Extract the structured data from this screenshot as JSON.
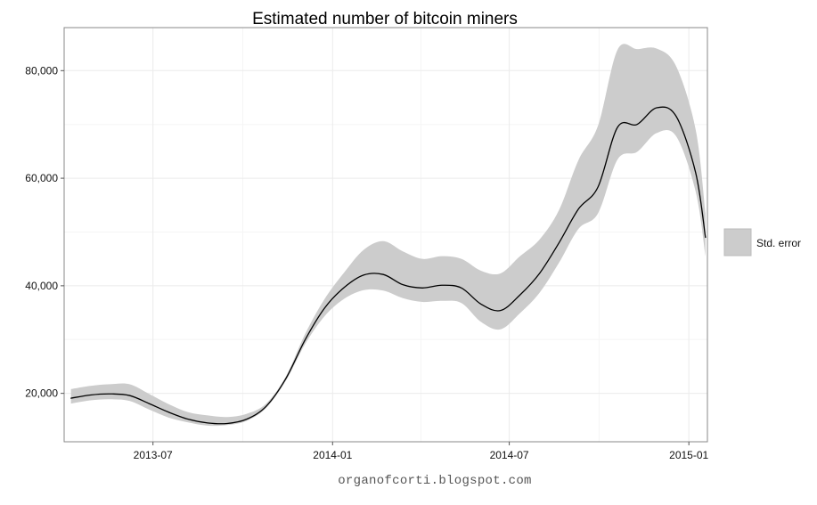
{
  "chart_data": {
    "type": "line",
    "title": "Estimated number of bitcoin miners",
    "xlabel": "",
    "ylabel": "",
    "x_axis": {
      "type": "date",
      "range": [
        "2013-04-01",
        "2015-01-20"
      ],
      "ticks": [
        "2013-07-01",
        "2014-01-01",
        "2014-07-01",
        "2015-01-01"
      ],
      "tick_labels": [
        "2013-07",
        "2014-01",
        "2014-07",
        "2015-01"
      ]
    },
    "y_axis": {
      "range": [
        11000,
        88000
      ],
      "ticks": [
        20000,
        40000,
        60000,
        80000
      ],
      "tick_labels": [
        "20,000",
        "40,000",
        "60,000",
        "80,000"
      ]
    },
    "grid": true,
    "legend": {
      "position": "right",
      "entries": [
        {
          "label": "Std. error",
          "color": "#cccccc"
        }
      ]
    },
    "series": [
      {
        "type": "line",
        "color": "#000000",
        "ribbon_color": "#cccccc",
        "points": [
          {
            "x": "2013-04-08",
            "y": 19100,
            "lower": 18100,
            "upper": 20800
          },
          {
            "x": "2013-04-28",
            "y": 19700,
            "lower": 18700,
            "upper": 21400
          },
          {
            "x": "2013-05-18",
            "y": 19900,
            "lower": 18900,
            "upper": 21700
          },
          {
            "x": "2013-06-07",
            "y": 19600,
            "lower": 18600,
            "upper": 21700
          },
          {
            "x": "2013-06-27",
            "y": 18100,
            "lower": 17000,
            "upper": 19900
          },
          {
            "x": "2013-07-17",
            "y": 16500,
            "lower": 15500,
            "upper": 18000
          },
          {
            "x": "2013-08-06",
            "y": 15200,
            "lower": 14600,
            "upper": 16500
          },
          {
            "x": "2013-08-26",
            "y": 14500,
            "lower": 14000,
            "upper": 15900
          },
          {
            "x": "2013-09-15",
            "y": 14400,
            "lower": 14100,
            "upper": 15600
          },
          {
            "x": "2013-10-05",
            "y": 15200,
            "lower": 14900,
            "upper": 16200
          },
          {
            "x": "2013-10-25",
            "y": 17600,
            "lower": 17300,
            "upper": 18100
          },
          {
            "x": "2013-11-14",
            "y": 22700,
            "lower": 22300,
            "upper": 23100
          },
          {
            "x": "2013-12-04",
            "y": 30000,
            "lower": 29200,
            "upper": 31100
          },
          {
            "x": "2013-12-24",
            "y": 35900,
            "lower": 34400,
            "upper": 37600
          },
          {
            "x": "2014-01-13",
            "y": 39700,
            "lower": 37600,
            "upper": 42500
          },
          {
            "x": "2014-02-02",
            "y": 42000,
            "lower": 39200,
            "upper": 46700
          },
          {
            "x": "2014-02-22",
            "y": 42100,
            "lower": 39100,
            "upper": 48300
          },
          {
            "x": "2014-03-14",
            "y": 40200,
            "lower": 37700,
            "upper": 46400
          },
          {
            "x": "2014-04-03",
            "y": 39600,
            "lower": 37000,
            "upper": 45000
          },
          {
            "x": "2014-04-23",
            "y": 40100,
            "lower": 37200,
            "upper": 45500
          },
          {
            "x": "2014-05-13",
            "y": 39600,
            "lower": 36800,
            "upper": 45000
          },
          {
            "x": "2014-06-02",
            "y": 36600,
            "lower": 33300,
            "upper": 42800
          },
          {
            "x": "2014-06-22",
            "y": 35400,
            "lower": 31900,
            "upper": 42300
          },
          {
            "x": "2014-07-12",
            "y": 38300,
            "lower": 34900,
            "upper": 45500
          },
          {
            "x": "2014-08-01",
            "y": 42300,
            "lower": 38700,
            "upper": 48600
          },
          {
            "x": "2014-08-21",
            "y": 48000,
            "lower": 44300,
            "upper": 54100
          },
          {
            "x": "2014-09-10",
            "y": 54300,
            "lower": 50600,
            "upper": 63400
          },
          {
            "x": "2014-09-30",
            "y": 58400,
            "lower": 53500,
            "upper": 69800
          },
          {
            "x": "2014-10-20",
            "y": 69500,
            "lower": 63500,
            "upper": 83900
          },
          {
            "x": "2014-11-09",
            "y": 70000,
            "lower": 64900,
            "upper": 84000
          },
          {
            "x": "2014-11-29",
            "y": 73100,
            "lower": 68400,
            "upper": 84100
          },
          {
            "x": "2014-12-19",
            "y": 71500,
            "lower": 67800,
            "upper": 80800
          },
          {
            "x": "2015-01-08",
            "y": 61000,
            "lower": 57500,
            "upper": 69000
          },
          {
            "x": "2015-01-18",
            "y": 49000,
            "lower": 45500,
            "upper": 53500
          }
        ]
      }
    ]
  },
  "colors": {
    "panel_border": "#888888",
    "grid_major": "#ebebeb",
    "grid_minor": "#f5f5f5",
    "ribbon": "#cccccc",
    "line": "#000000"
  },
  "credit": "organofcorti.blogspot.com"
}
